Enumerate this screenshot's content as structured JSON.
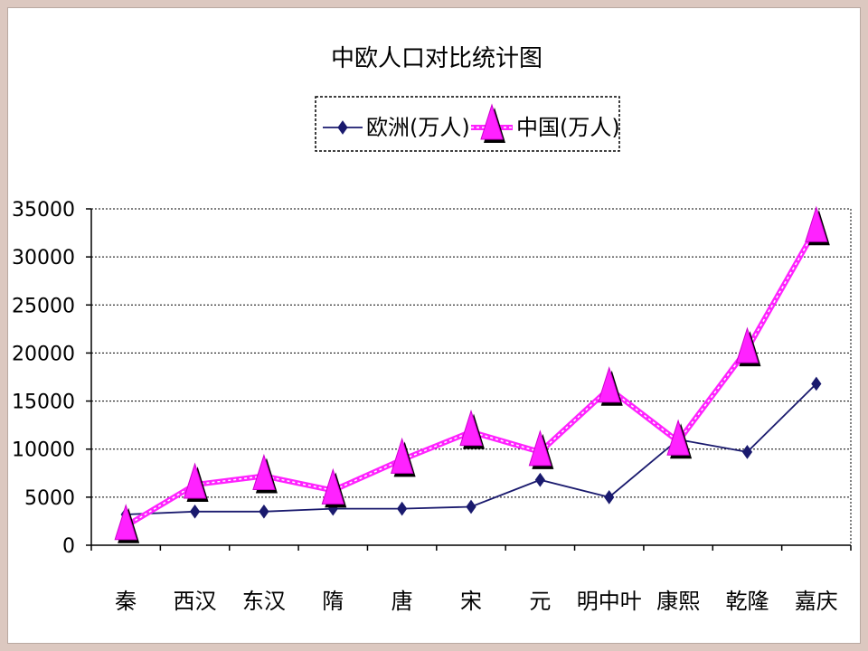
{
  "chart_data": {
    "type": "line",
    "title": "中欧人口对比统计图",
    "categories": [
      "秦",
      "西汉",
      "东汉",
      "隋",
      "唐",
      "宋",
      "元",
      "明中叶",
      "康熙",
      "乾隆",
      "嘉庆"
    ],
    "yticks": [
      "0",
      "5000",
      "10000",
      "15000",
      "20000",
      "25000",
      "30000",
      "35000"
    ],
    "ylim": [
      0,
      35000
    ],
    "grid": true,
    "legend_position": "top",
    "series": [
      {
        "name": "欧洲(万人)",
        "color": "#1a1a6e",
        "marker": "diamond",
        "values": [
          3200,
          3500,
          3500,
          3800,
          3800,
          4000,
          6800,
          5000,
          11000,
          9700,
          16800
        ]
      },
      {
        "name": "中国(万人)",
        "color": "#ff22ff",
        "marker": "triangle",
        "values": [
          2000,
          6300,
          7200,
          5700,
          8900,
          11800,
          9700,
          16300,
          10800,
          20400,
          33000
        ]
      }
    ]
  }
}
